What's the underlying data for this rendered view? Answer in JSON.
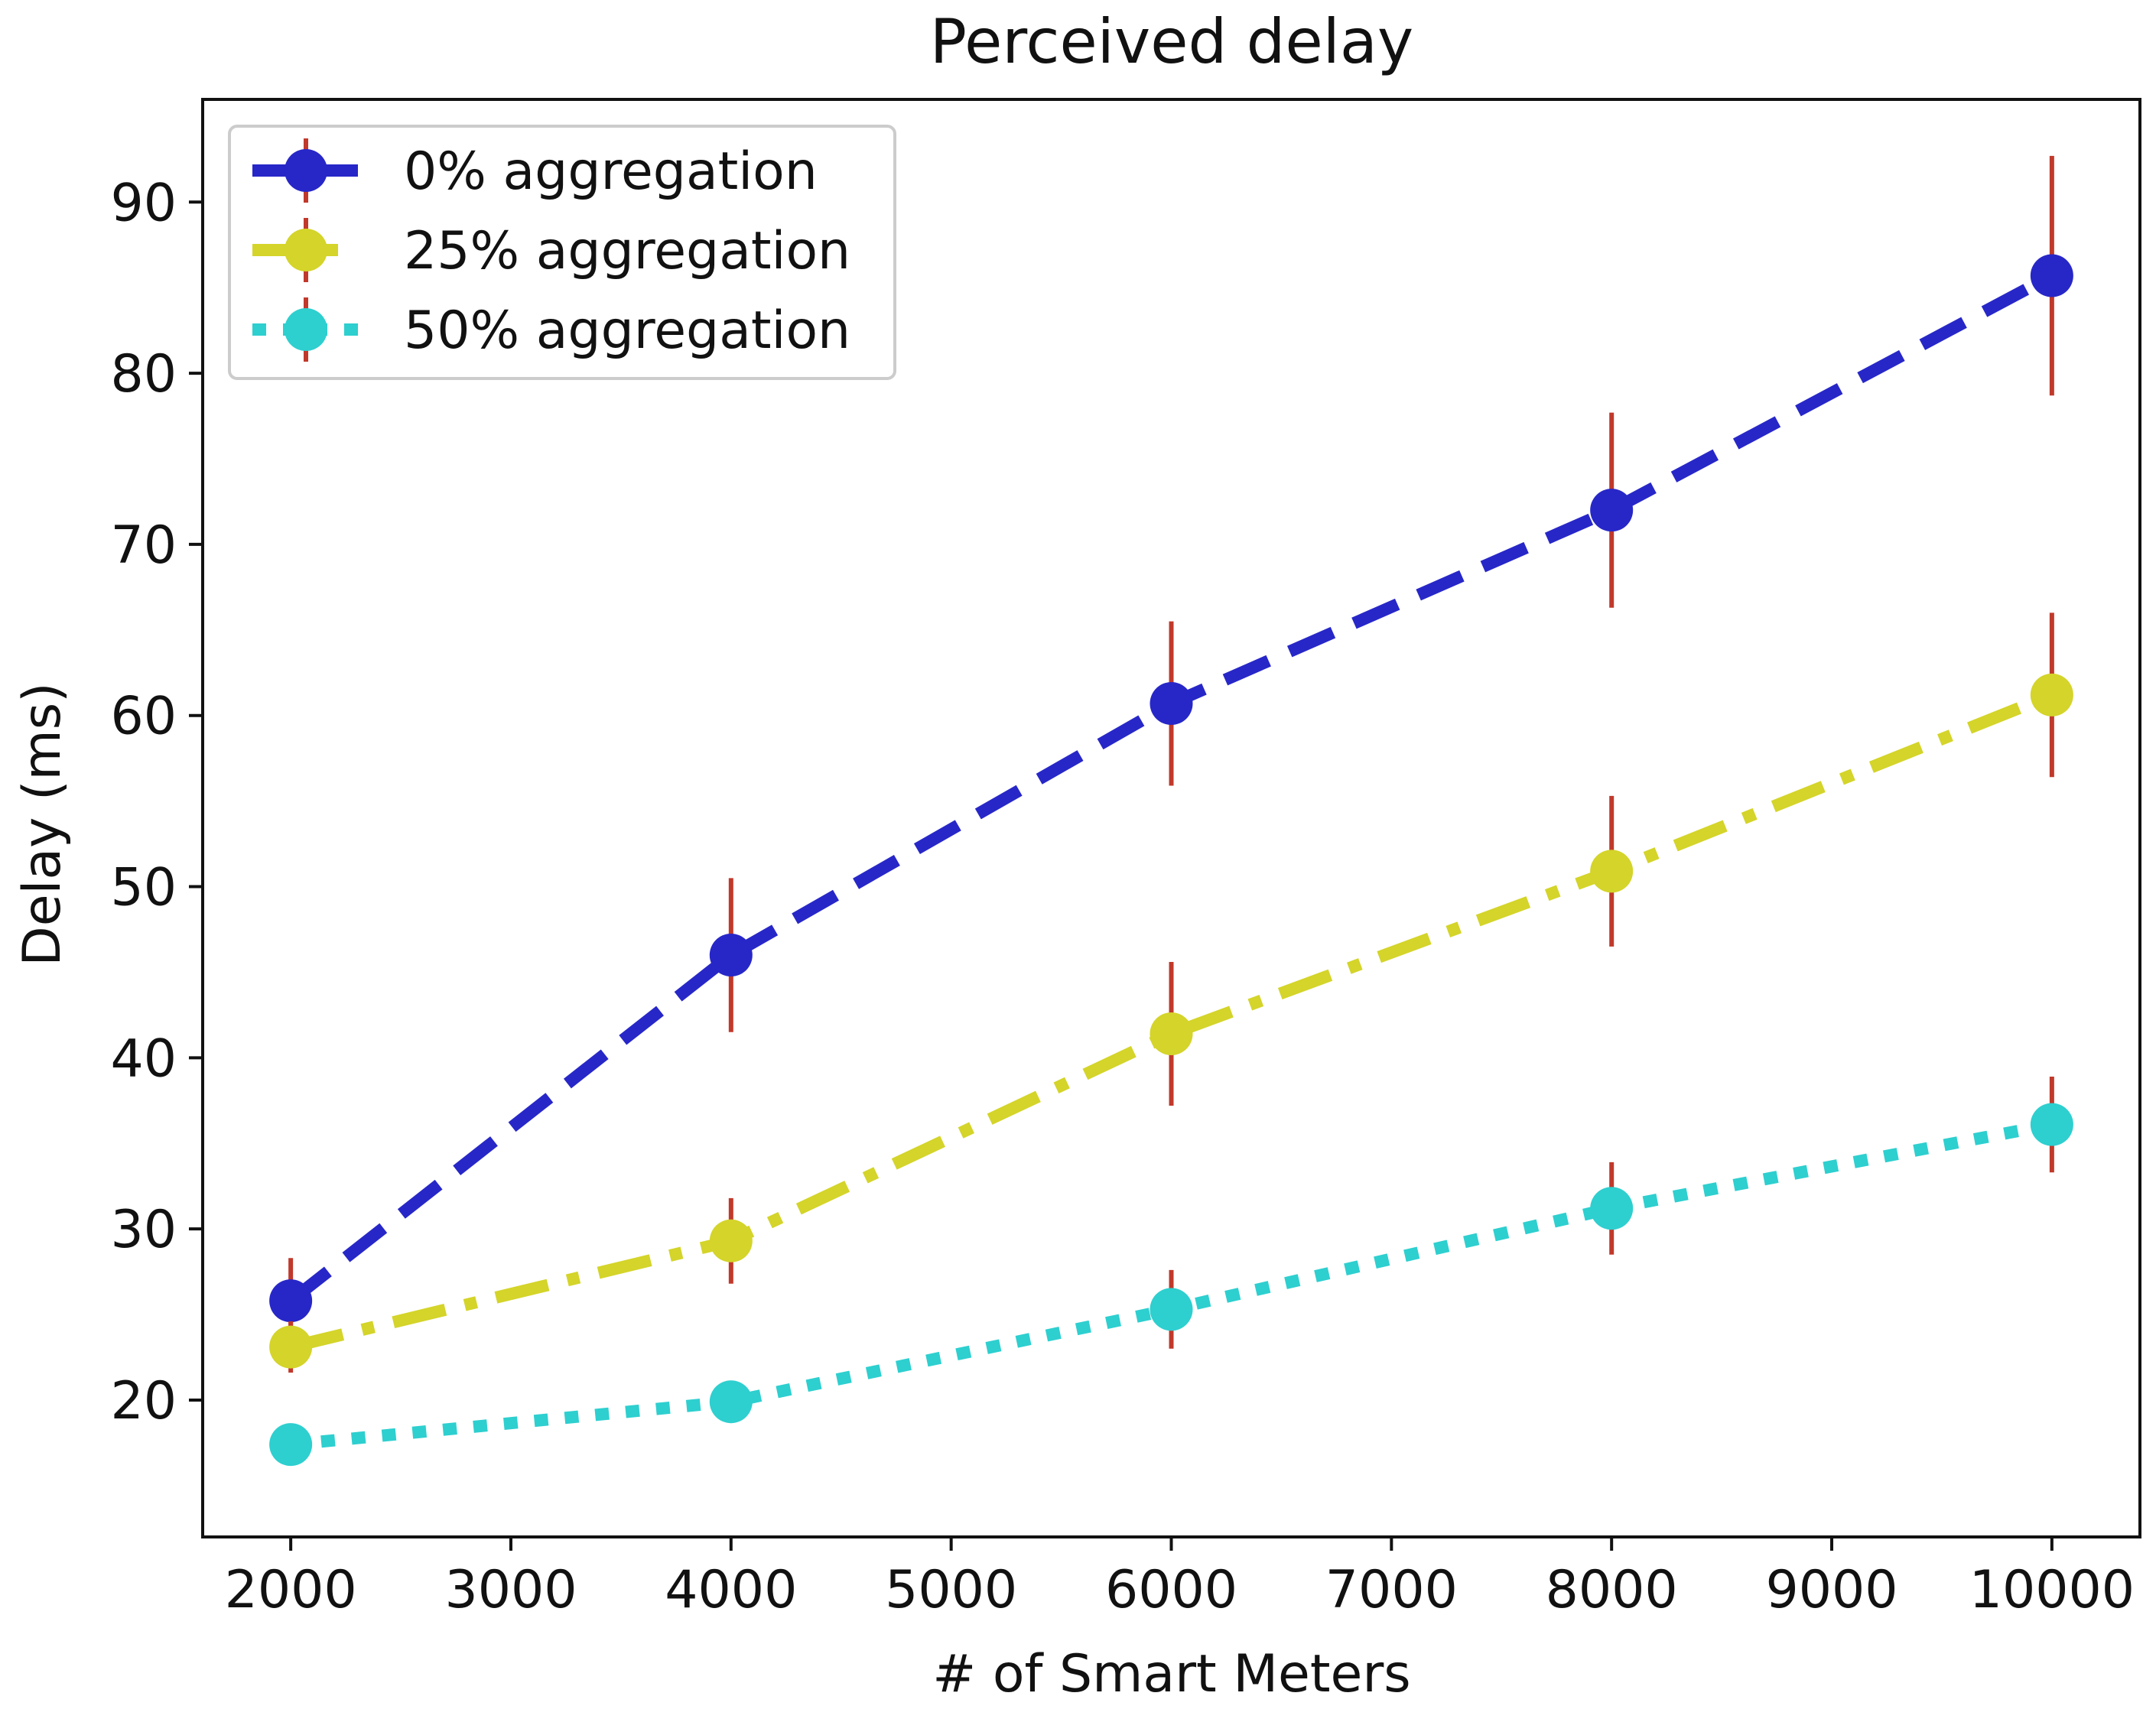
{
  "chart_data": {
    "type": "line",
    "title": "Perceived delay",
    "xlabel": "# of Smart Meters",
    "ylabel": "Delay (ms)",
    "xlim": [
      1600,
      10400
    ],
    "ylim": [
      12,
      96
    ],
    "xticks": [
      2000,
      3000,
      4000,
      5000,
      6000,
      7000,
      8000,
      9000,
      10000
    ],
    "yticks": [
      20,
      30,
      40,
      50,
      60,
      70,
      80,
      90
    ],
    "grid": false,
    "legend_position": "top-left",
    "error_bar_color": "#c0392b",
    "x": [
      2000,
      4000,
      6000,
      8000,
      10000
    ],
    "series": [
      {
        "name": "0% aggregation",
        "color": "#2727c8",
        "line_style": "dashed",
        "values": [
          25.8,
          46.0,
          60.7,
          72.0,
          85.7
        ],
        "error": [
          2.5,
          4.5,
          4.8,
          5.7,
          7.0
        ]
      },
      {
        "name": "25% aggregation",
        "color": "#d4d42a",
        "line_style": "dashdot",
        "values": [
          23.1,
          29.3,
          41.4,
          50.9,
          61.2
        ],
        "error": [
          1.5,
          2.5,
          4.2,
          4.4,
          4.8
        ]
      },
      {
        "name": "50% aggregation",
        "color": "#2ecfcf",
        "line_style": "dotted",
        "values": [
          17.4,
          19.9,
          25.3,
          31.2,
          36.1
        ],
        "error": [
          0.4,
          0.4,
          2.3,
          2.7,
          2.8
        ]
      }
    ]
  }
}
